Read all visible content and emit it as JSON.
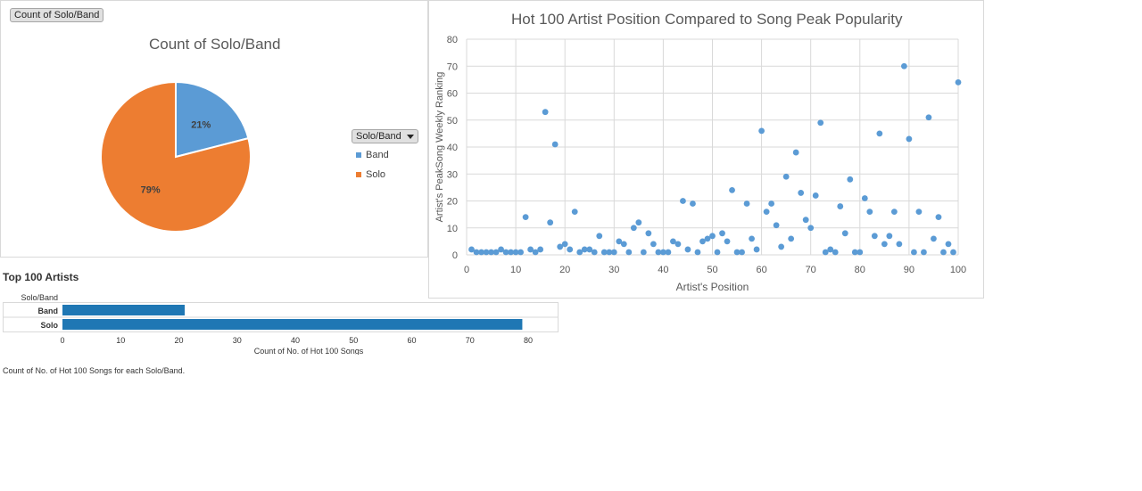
{
  "pie": {
    "field_button": "Count of Solo/Band",
    "title": "Count of Solo/Band",
    "legend_button": "Solo/Band",
    "colors": {
      "Band": "#5b9bd5",
      "Solo": "#ed7d31"
    }
  },
  "scatter": {
    "title": "Hot 100 Artist Position Compared to Song Peak Popularity",
    "xlabel": "Artist's Position",
    "ylabel": "Artist's PeakSong Weekly Ranking",
    "color": "#5b9bd5"
  },
  "bar": {
    "title": "Top 100 Artists",
    "row_header": "Solo/Band",
    "xlabel": "Count of No. of Hot 100 Songs",
    "caption": "Count of No. of Hot 100 Songs for each Solo/Band.",
    "color": "#1f77b4"
  },
  "chart_data": [
    {
      "type": "pie",
      "title": "Count of Solo/Band",
      "categories": [
        "Band",
        "Solo"
      ],
      "values": [
        21,
        79
      ],
      "labels": [
        "21%",
        "79%"
      ],
      "legend_position": "right"
    },
    {
      "type": "scatter",
      "title": "Hot 100 Artist Position Compared to Song Peak Popularity",
      "xlabel": "Artist's Position",
      "ylabel": "Artist's PeakSong Weekly Ranking",
      "xlim": [
        0,
        100
      ],
      "ylim": [
        0,
        80
      ],
      "xticks": [
        0,
        10,
        20,
        30,
        40,
        50,
        60,
        70,
        80,
        90,
        100
      ],
      "yticks": [
        0,
        10,
        20,
        30,
        40,
        50,
        60,
        70,
        80
      ],
      "grid": true,
      "x": [
        1,
        2,
        3,
        4,
        5,
        6,
        7,
        8,
        9,
        10,
        11,
        12,
        13,
        14,
        15,
        16,
        17,
        18,
        19,
        20,
        21,
        22,
        23,
        24,
        25,
        26,
        27,
        28,
        29,
        30,
        31,
        32,
        33,
        34,
        35,
        36,
        37,
        38,
        39,
        40,
        41,
        42,
        43,
        44,
        45,
        46,
        47,
        48,
        49,
        50,
        51,
        52,
        53,
        54,
        55,
        56,
        57,
        58,
        59,
        60,
        61,
        62,
        63,
        64,
        65,
        66,
        67,
        68,
        69,
        70,
        71,
        72,
        73,
        74,
        75,
        76,
        77,
        78,
        79,
        80,
        81,
        82,
        83,
        84,
        85,
        86,
        87,
        88,
        89,
        90,
        91,
        92,
        93,
        94,
        95,
        96,
        97,
        98,
        99,
        100
      ],
      "y": [
        2,
        1,
        1,
        1,
        1,
        1,
        2,
        1,
        1,
        1,
        1,
        14,
        2,
        1,
        2,
        53,
        12,
        41,
        3,
        4,
        2,
        16,
        1,
        2,
        2,
        1,
        7,
        1,
        1,
        1,
        5,
        4,
        1,
        10,
        12,
        1,
        8,
        4,
        1,
        1,
        1,
        5,
        4,
        20,
        2,
        19,
        1,
        5,
        6,
        7,
        1,
        8,
        5,
        24,
        1,
        1,
        19,
        6,
        2,
        46,
        16,
        19,
        11,
        3,
        29,
        6,
        38,
        23,
        13,
        10,
        22,
        49,
        1,
        2,
        1,
        18,
        8,
        28,
        1,
        1,
        21,
        16,
        7,
        45,
        4,
        7,
        16,
        4,
        70,
        43,
        1,
        16,
        1,
        51,
        6,
        14,
        1,
        4,
        1,
        64
      ]
    },
    {
      "type": "bar",
      "title": "Top 100 Artists",
      "categories": [
        "Band",
        "Solo"
      ],
      "values": [
        21,
        79
      ],
      "xlabel": "Count of No. of Hot 100 Songs",
      "xlim": [
        0,
        82
      ],
      "xticks": [
        0,
        10,
        20,
        30,
        40,
        50,
        60,
        70,
        80
      ],
      "orientation": "horizontal"
    }
  ]
}
